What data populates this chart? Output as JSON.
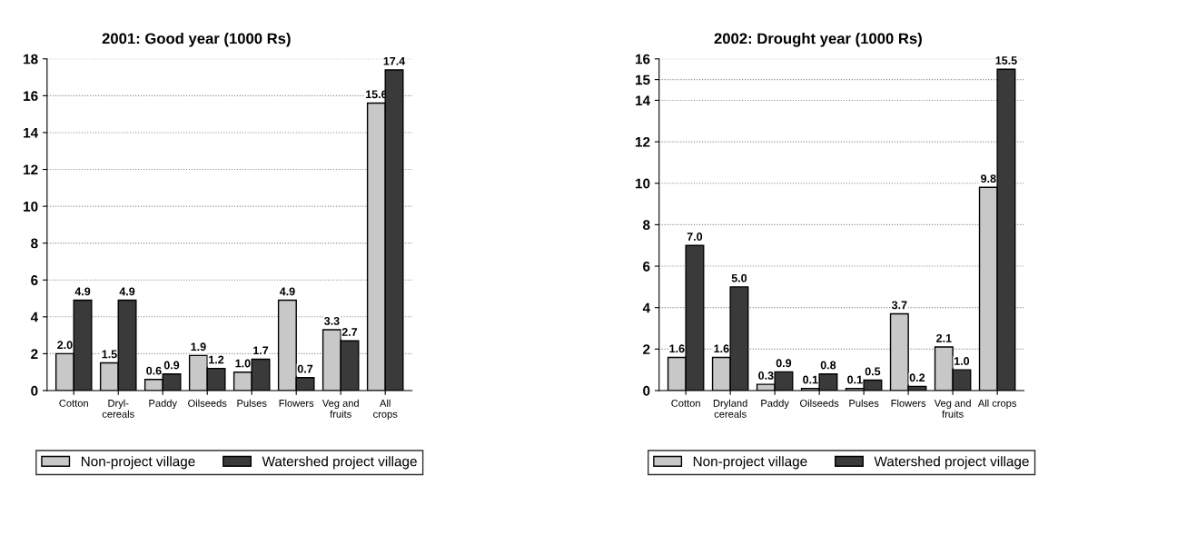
{
  "chart_data": [
    {
      "type": "bar",
      "title": "2001: Good year (1000 Rs)",
      "categories": [
        "Cotton",
        "Dryl-\ncereals",
        "Paddy",
        "Oilseeds",
        "Pulses",
        "Flowers",
        "Veg and\nfruits",
        "All\ncrops"
      ],
      "series": [
        {
          "name": "Non-project village",
          "color": "#c8c8c8",
          "values": [
            2.0,
            1.5,
            0.6,
            1.9,
            1.0,
            4.9,
            3.3,
            15.6
          ],
          "value_labels": [
            "2.0",
            "1.5",
            "0.6",
            "1.9",
            "1.0",
            "4.9",
            "3.3",
            "15.6"
          ]
        },
        {
          "name": "Watershed project village",
          "color": "#3a3a3a",
          "values": [
            4.9,
            4.9,
            0.9,
            1.2,
            1.7,
            0.7,
            2.7,
            17.4
          ],
          "value_labels": [
            "4.9",
            "4.9",
            "0.9",
            "1.2",
            "1.7",
            "0.7",
            "2.7",
            "17.4"
          ]
        }
      ],
      "ylim": [
        0,
        18
      ],
      "yticks": [
        0,
        2,
        4,
        6,
        8,
        10,
        12,
        14,
        16,
        18
      ],
      "grid": "y",
      "legend": "bottom"
    },
    {
      "type": "bar",
      "title": "2002: Drought year (1000 Rs)",
      "categories": [
        "Cotton",
        "Dryland\ncereals",
        "Paddy",
        "Oilseeds",
        "Pulses",
        "Flowers",
        "Veg and\nfruits",
        "All crops"
      ],
      "series": [
        {
          "name": "Non-project village",
          "color": "#c8c8c8",
          "values": [
            1.6,
            1.6,
            0.3,
            0.1,
            0.1,
            3.7,
            2.1,
            9.8
          ],
          "value_labels": [
            "1.6",
            "1.6",
            "0.3",
            "0.1",
            "0.1",
            "3.7",
            "2.1",
            "9.8"
          ]
        },
        {
          "name": "Watershed project village",
          "color": "#3a3a3a",
          "values": [
            7.0,
            5.0,
            0.9,
            0.8,
            0.5,
            0.2,
            1.0,
            15.5
          ],
          "value_labels": [
            "7.0",
            "5.0",
            "0.9",
            "0.8",
            "0.5",
            "0.2",
            "1.0",
            "15.5"
          ]
        }
      ],
      "ylim": [
        0,
        16
      ],
      "yticks": [
        0,
        2,
        4,
        6,
        8,
        10,
        12,
        14,
        15,
        16
      ],
      "grid": "y",
      "legend": "bottom"
    }
  ]
}
